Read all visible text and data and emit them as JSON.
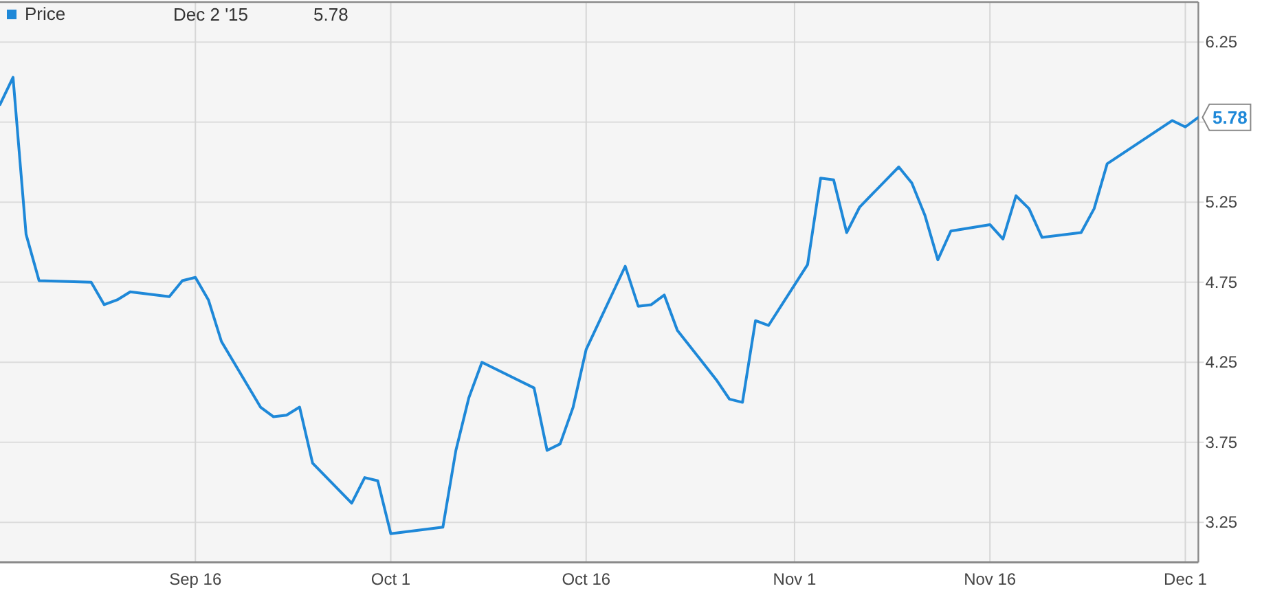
{
  "chart_data": {
    "type": "line",
    "x": [
      "2015-09-01",
      "2015-09-02",
      "2015-09-03",
      "2015-09-04",
      "2015-09-08",
      "2015-09-09",
      "2015-09-10",
      "2015-09-11",
      "2015-09-14",
      "2015-09-15",
      "2015-09-16",
      "2015-09-17",
      "2015-09-18",
      "2015-09-21",
      "2015-09-22",
      "2015-09-23",
      "2015-09-24",
      "2015-09-25",
      "2015-09-28",
      "2015-09-29",
      "2015-09-30",
      "2015-10-01",
      "2015-10-05",
      "2015-10-06",
      "2015-10-07",
      "2015-10-08",
      "2015-10-12",
      "2015-10-13",
      "2015-10-14",
      "2015-10-15",
      "2015-10-16",
      "2015-10-19",
      "2015-10-20",
      "2015-10-21",
      "2015-10-22",
      "2015-10-23",
      "2015-10-26",
      "2015-10-27",
      "2015-10-28",
      "2015-10-29",
      "2015-10-30",
      "2015-11-02",
      "2015-11-03",
      "2015-11-04",
      "2015-11-05",
      "2015-11-06",
      "2015-11-09",
      "2015-11-10",
      "2015-11-11",
      "2015-11-12",
      "2015-11-13",
      "2015-11-16",
      "2015-11-17",
      "2015-11-18",
      "2015-11-19",
      "2015-11-20",
      "2015-11-23",
      "2015-11-24",
      "2015-11-25",
      "2015-11-30",
      "2015-12-01",
      "2015-12-02"
    ],
    "series": [
      {
        "name": "Price",
        "color": "#1e88d8",
        "values": [
          5.86,
          6.03,
          5.05,
          4.76,
          4.75,
          4.61,
          4.64,
          4.69,
          4.66,
          4.76,
          4.78,
          4.64,
          4.38,
          3.97,
          3.91,
          3.92,
          3.97,
          3.62,
          3.37,
          3.53,
          3.51,
          3.18,
          3.22,
          3.7,
          4.03,
          4.25,
          4.09,
          3.7,
          3.74,
          3.97,
          4.33,
          4.85,
          4.6,
          4.61,
          4.67,
          4.45,
          4.14,
          4.02,
          4.0,
          4.51,
          4.48,
          4.86,
          5.4,
          5.39,
          5.06,
          5.22,
          5.47,
          5.37,
          5.17,
          4.89,
          5.07,
          5.11,
          5.02,
          5.29,
          5.21,
          5.03,
          5.06,
          5.21,
          5.49,
          5.76,
          5.72,
          5.78
        ],
        "value_labels": [
          null,
          null,
          null,
          null,
          null,
          null,
          null,
          null,
          null,
          null,
          null,
          null,
          null,
          null,
          null,
          null,
          null,
          null,
          null,
          null,
          null,
          null,
          null,
          null,
          null,
          null,
          null,
          null,
          null,
          null,
          null,
          null,
          null,
          null,
          null,
          null,
          null,
          null,
          null,
          null,
          null,
          null,
          null,
          null,
          null,
          null,
          null,
          null,
          null,
          null,
          null,
          null,
          null,
          null,
          null,
          null,
          null,
          null,
          null,
          null,
          null,
          "5.78"
        ]
      }
    ],
    "xlim": [
      "2015-09-01",
      "2015-12-02"
    ],
    "xticks": [
      {
        "value": "2015-09-16",
        "label": "Sep 16"
      },
      {
        "value": "2015-10-01",
        "label": "Oct 1"
      },
      {
        "value": "2015-10-16",
        "label": "Oct 16"
      },
      {
        "value": "2015-11-01",
        "label": "Nov 1"
      },
      {
        "value": "2015-11-16",
        "label": "Nov 16"
      },
      {
        "value": "2015-12-01",
        "label": "Dec 1"
      }
    ],
    "ylim": [
      3,
      6.5
    ],
    "yticks": [
      3.25,
      3.75,
      4.25,
      4.75,
      5.25,
      {
        "value": 5.75,
        "label": null
      },
      6.25
    ],
    "grid": true,
    "legend": "top left",
    "annotations": [
      "Dec 2 '15",
      "5.78"
    ]
  }
}
